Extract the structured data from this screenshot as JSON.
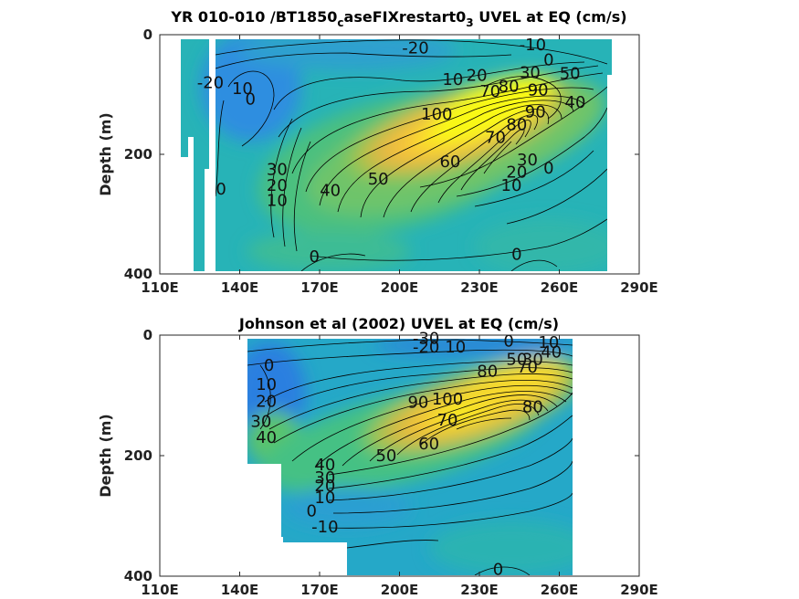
{
  "colors": {
    "background": "#ffffff",
    "colormap": "parula",
    "contour_line": "#000000",
    "axis": "#262626"
  },
  "chart_data": [
    {
      "type": "contour",
      "title_parts": [
        "YR 010-010 /BT1850",
        "c",
        "aseFIXrestart0",
        "3",
        " UVEL at EQ (cm/s)"
      ],
      "title_subscript_index": [
        1,
        3
      ],
      "xlabel": "",
      "ylabel": "Depth (m)",
      "xlim": [
        110,
        290
      ],
      "ylim": [
        0,
        400
      ],
      "y_reversed": true,
      "x_ticks": [
        110,
        140,
        170,
        200,
        230,
        260,
        290
      ],
      "x_tick_labels": [
        "110E",
        "140E",
        "170E",
        "200E",
        "230E",
        "260E",
        "290E"
      ],
      "y_ticks": [
        0,
        200,
        400
      ],
      "y_tick_labels": [
        "0",
        "200",
        "400"
      ],
      "core": {
        "lon": 232,
        "depth": 110,
        "max": 100
      },
      "contour_labels": [
        {
          "lon": 206,
          "depth": 22,
          "value": "-20"
        },
        {
          "lon": 250,
          "depth": 17,
          "value": "-10"
        },
        {
          "lon": 129,
          "depth": 80,
          "value": "-20"
        },
        {
          "lon": 141,
          "depth": 90,
          "value": "10"
        },
        {
          "lon": 144,
          "depth": 108,
          "value": "0"
        },
        {
          "lon": 256,
          "depth": 42,
          "value": "0"
        },
        {
          "lon": 264,
          "depth": 65,
          "value": "50"
        },
        {
          "lon": 220,
          "depth": 75,
          "value": "10"
        },
        {
          "lon": 229,
          "depth": 68,
          "value": "20"
        },
        {
          "lon": 249,
          "depth": 63,
          "value": "30"
        },
        {
          "lon": 234,
          "depth": 95,
          "value": "70"
        },
        {
          "lon": 241,
          "depth": 86,
          "value": "80"
        },
        {
          "lon": 252,
          "depth": 92,
          "value": "90"
        },
        {
          "lon": 266,
          "depth": 113,
          "value": "40"
        },
        {
          "lon": 214,
          "depth": 133,
          "value": "100"
        },
        {
          "lon": 251,
          "depth": 129,
          "value": "90"
        },
        {
          "lon": 244,
          "depth": 150,
          "value": "80"
        },
        {
          "lon": 236,
          "depth": 172,
          "value": "70"
        },
        {
          "lon": 219,
          "depth": 212,
          "value": "60"
        },
        {
          "lon": 248,
          "depth": 209,
          "value": "30"
        },
        {
          "lon": 244,
          "depth": 230,
          "value": "20"
        },
        {
          "lon": 242,
          "depth": 252,
          "value": "10"
        },
        {
          "lon": 256,
          "depth": 223,
          "value": "0"
        },
        {
          "lon": 192,
          "depth": 241,
          "value": "50"
        },
        {
          "lon": 174,
          "depth": 260,
          "value": "40"
        },
        {
          "lon": 154,
          "depth": 225,
          "value": "30"
        },
        {
          "lon": 154,
          "depth": 252,
          "value": "20"
        },
        {
          "lon": 154,
          "depth": 277,
          "value": "10"
        },
        {
          "lon": 133,
          "depth": 258,
          "value": "0"
        },
        {
          "lon": 168,
          "depth": 371,
          "value": "0"
        },
        {
          "lon": 244,
          "depth": 367,
          "value": "0"
        }
      ]
    },
    {
      "type": "contour",
      "title_parts": [
        "Johnson et al (2002) UVEL at EQ (cm/s)"
      ],
      "title_subscript_index": [],
      "xlabel": "",
      "ylabel": "Depth (m)",
      "xlim": [
        110,
        290
      ],
      "ylim": [
        0,
        400
      ],
      "y_reversed": true,
      "x_ticks": [
        110,
        140,
        170,
        200,
        230,
        260,
        290
      ],
      "x_tick_labels": [
        "110E",
        "140E",
        "170E",
        "200E",
        "230E",
        "260E",
        "290E"
      ],
      "y_ticks": [
        0,
        200,
        400
      ],
      "y_tick_labels": [
        "0",
        "200",
        "400"
      ],
      "core": {
        "lon": 225,
        "depth": 108,
        "max": 100
      },
      "contour_labels": [
        {
          "lon": 210,
          "depth": 5,
          "value": "-30"
        },
        {
          "lon": 210,
          "depth": 20,
          "value": "-20"
        },
        {
          "lon": 221,
          "depth": 20,
          "value": "10"
        },
        {
          "lon": 241,
          "depth": 10,
          "value": "0"
        },
        {
          "lon": 256,
          "depth": 12,
          "value": "10"
        },
        {
          "lon": 244,
          "depth": 40,
          "value": "50"
        },
        {
          "lon": 250,
          "depth": 40,
          "value": "30"
        },
        {
          "lon": 257,
          "depth": 28,
          "value": "40"
        },
        {
          "lon": 233,
          "depth": 60,
          "value": "80"
        },
        {
          "lon": 248,
          "depth": 53,
          "value": "70"
        },
        {
          "lon": 151,
          "depth": 50,
          "value": "0"
        },
        {
          "lon": 150,
          "depth": 82,
          "value": "10"
        },
        {
          "lon": 150,
          "depth": 110,
          "value": "20"
        },
        {
          "lon": 148,
          "depth": 143,
          "value": "30"
        },
        {
          "lon": 150,
          "depth": 170,
          "value": "40"
        },
        {
          "lon": 207,
          "depth": 111,
          "value": "90"
        },
        {
          "lon": 218,
          "depth": 106,
          "value": "100"
        },
        {
          "lon": 218,
          "depth": 141,
          "value": "70"
        },
        {
          "lon": 250,
          "depth": 119,
          "value": "80"
        },
        {
          "lon": 211,
          "depth": 180,
          "value": "60"
        },
        {
          "lon": 195,
          "depth": 200,
          "value": "50"
        },
        {
          "lon": 172,
          "depth": 215,
          "value": "40"
        },
        {
          "lon": 172,
          "depth": 236,
          "value": "30"
        },
        {
          "lon": 172,
          "depth": 250,
          "value": "20"
        },
        {
          "lon": 172,
          "depth": 270,
          "value": "10"
        },
        {
          "lon": 167,
          "depth": 292,
          "value": "0"
        },
        {
          "lon": 172,
          "depth": 318,
          "value": "-10"
        },
        {
          "lon": 237,
          "depth": 389,
          "value": "0"
        }
      ]
    }
  ]
}
